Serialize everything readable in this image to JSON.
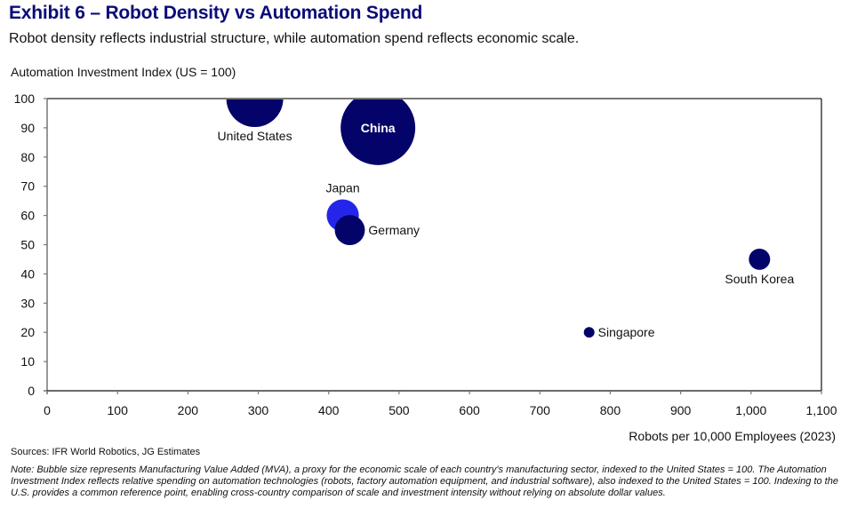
{
  "header": {
    "title": "Exhibit 6 – Robot Density vs Automation Spend",
    "subtitle": "Robot density reflects industrial structure, while automation spend reflects economic scale."
  },
  "footer": {
    "sources": "Sources: IFR World Robotics, JG Estimates",
    "note": "Note: Bubble size represents Manufacturing Value Added (MVA), a proxy for the economic scale of each country's manufacturing sector, indexed to the United States = 100. The Automation Investment Index reflects relative spending on automation technologies (robots, factory automation equipment, and industrial software), also indexed to the United States = 100. Indexing to the U.S. provides a common reference point, enabling cross-country comparison of scale and investment intensity without relying on absolute dollar values."
  },
  "colors": {
    "title": "#0b0b78",
    "bubble_default": "#03036a",
    "bubble_highlight": "#2525ea",
    "axis": "#777777"
  },
  "chart_data": {
    "type": "scatter",
    "subtype": "bubble",
    "title": "Exhibit 6 – Robot Density vs Automation Spend",
    "subtitle": "Robot density reflects industrial structure, while automation spend reflects economic scale.",
    "xlabel": "Robots per 10,000 Employees (2023)",
    "ylabel": "Automation Investment Index (US = 100)",
    "xlim": [
      0,
      1100
    ],
    "ylim": [
      0,
      100
    ],
    "x_ticks": [
      0,
      100,
      200,
      300,
      400,
      500,
      600,
      700,
      800,
      900,
      1000,
      1100
    ],
    "x_tick_labels": [
      "0",
      "100",
      "200",
      "300",
      "400",
      "500",
      "600",
      "700",
      "800",
      "900",
      "1,000",
      "1,100"
    ],
    "y_ticks": [
      0,
      10,
      20,
      30,
      40,
      50,
      60,
      70,
      80,
      90,
      100
    ],
    "y_tick_labels": [
      "0",
      "10",
      "20",
      "30",
      "40",
      "50",
      "60",
      "70",
      "80",
      "90",
      "100"
    ],
    "grid": false,
    "legend": "none",
    "size_measure": "Manufacturing Value Added (MVA), indexed US = 100 (estimated from bubble area)",
    "points": [
      {
        "name": "United States",
        "x": 295,
        "y": 100,
        "size": 100,
        "color": "#03036a",
        "label_pos": "below"
      },
      {
        "name": "China",
        "x": 470,
        "y": 90,
        "size": 172,
        "color": "#03036a",
        "label_pos": "inside"
      },
      {
        "name": "Japan",
        "x": 420,
        "y": 60,
        "size": 32,
        "color": "#2525ea",
        "label_pos": "above"
      },
      {
        "name": "Germany",
        "x": 430,
        "y": 55,
        "size": 28,
        "color": "#03036a",
        "label_pos": "right"
      },
      {
        "name": "South Korea",
        "x": 1012,
        "y": 45,
        "size": 14,
        "color": "#03036a",
        "label_pos": "below"
      },
      {
        "name": "Singapore",
        "x": 770,
        "y": 20,
        "size": 3.5,
        "color": "#03036a",
        "label_pos": "right"
      }
    ]
  }
}
